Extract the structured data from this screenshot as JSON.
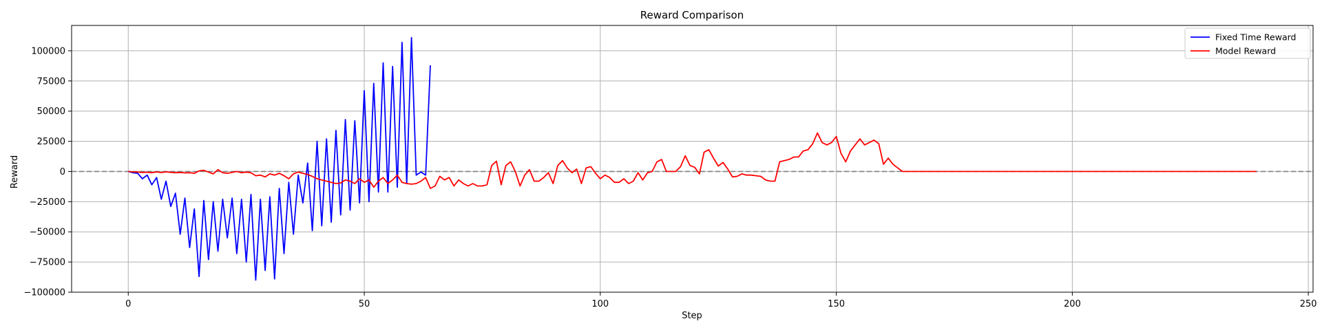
{
  "chart_data": {
    "type": "line",
    "title": "Reward Comparison",
    "xlabel": "Step",
    "ylabel": "Reward",
    "xlim": [
      -12,
      251
    ],
    "ylim": [
      -100000,
      121000
    ],
    "xticks": [
      0,
      50,
      100,
      150,
      200,
      250
    ],
    "yticks": [
      -100000,
      -75000,
      -50000,
      -25000,
      0,
      25000,
      50000,
      75000,
      100000
    ],
    "xtick_labels": [
      "0",
      "50",
      "100",
      "150",
      "200",
      "250"
    ],
    "ytick_labels": [
      "−100000",
      "−75000",
      "−50000",
      "−25000",
      "0",
      "25000",
      "50000",
      "75000",
      "100000"
    ],
    "grid": true,
    "legend_position": "top-right",
    "reference_line": {
      "y": 0,
      "style": "dashed",
      "color": "#808080"
    },
    "series": [
      {
        "name": "Fixed Time Reward",
        "color": "#0000ff",
        "x": [
          0,
          1,
          2,
          3,
          4,
          5,
          6,
          7,
          8,
          9,
          10,
          11,
          12,
          13,
          14,
          15,
          16,
          17,
          18,
          19,
          20,
          21,
          22,
          23,
          24,
          25,
          26,
          27,
          28,
          29,
          30,
          31,
          32,
          33,
          34,
          35,
          36,
          37,
          38,
          39,
          40,
          41,
          42,
          43,
          44,
          45,
          46,
          47,
          48,
          49,
          50,
          51,
          52,
          53,
          54,
          55,
          56,
          57,
          58,
          59,
          60,
          61,
          62,
          63,
          64
        ],
        "y": [
          0,
          -1000,
          -1500,
          -6000,
          -3000,
          -11000,
          -5000,
          -23000,
          -8000,
          -29000,
          -18000,
          -52000,
          -22000,
          -63000,
          -31000,
          -87000,
          -24000,
          -73000,
          -25000,
          -66000,
          -23000,
          -55000,
          -22000,
          -68000,
          -23000,
          -75000,
          -19000,
          -90000,
          -23000,
          -82000,
          -21000,
          -89000,
          -14000,
          -68000,
          -9000,
          -52000,
          -3000,
          -26000,
          7000,
          -49000,
          25000,
          -45000,
          27000,
          -42000,
          34000,
          -36000,
          43000,
          -32000,
          42000,
          -26000,
          67000,
          -25000,
          73000,
          -17000,
          90000,
          -17000,
          87000,
          -13000,
          107000,
          -10000,
          111000,
          -3000,
          -500,
          -3000,
          88000
        ]
      },
      {
        "name": "Model Reward",
        "color": "#ff0000",
        "x": [
          0,
          1,
          2,
          3,
          4,
          5,
          6,
          7,
          8,
          9,
          10,
          11,
          12,
          13,
          14,
          15,
          16,
          17,
          18,
          19,
          20,
          21,
          22,
          23,
          24,
          25,
          26,
          27,
          28,
          29,
          30,
          31,
          32,
          33,
          34,
          35,
          36,
          37,
          38,
          39,
          40,
          41,
          42,
          43,
          44,
          45,
          46,
          47,
          48,
          49,
          50,
          51,
          52,
          53,
          54,
          55,
          56,
          57,
          58,
          59,
          60,
          61,
          62,
          63,
          64,
          65,
          66,
          67,
          68,
          69,
          70,
          71,
          72,
          73,
          74,
          75,
          76,
          77,
          78,
          79,
          80,
          81,
          82,
          83,
          84,
          85,
          86,
          87,
          88,
          89,
          90,
          91,
          92,
          93,
          94,
          95,
          96,
          97,
          98,
          99,
          100,
          101,
          102,
          103,
          104,
          105,
          106,
          107,
          108,
          109,
          110,
          111,
          112,
          113,
          114,
          115,
          116,
          117,
          118,
          119,
          120,
          121,
          122,
          123,
          124,
          125,
          126,
          127,
          128,
          129,
          130,
          131,
          132,
          133,
          134,
          135,
          136,
          137,
          138,
          139,
          140,
          141,
          142,
          143,
          144,
          145,
          146,
          147,
          148,
          149,
          150,
          151,
          152,
          153,
          154,
          155,
          156,
          157,
          158,
          159,
          160,
          161,
          162,
          163,
          164,
          239
        ],
        "y": [
          0,
          -300,
          -500,
          -800,
          -600,
          -1000,
          -400,
          -900,
          -300,
          -700,
          -1000,
          -800,
          -1200,
          -1000,
          -1500,
          500,
          1000,
          -500,
          -2000,
          1500,
          -1000,
          -1500,
          -800,
          0,
          -1000,
          -500,
          -1000,
          -3500,
          -3000,
          -4500,
          -2000,
          -3000,
          -1500,
          -3500,
          -6000,
          -2000,
          -500,
          -1500,
          -2500,
          -4000,
          -6000,
          -7000,
          -8000,
          -9000,
          -10000,
          -9500,
          -7000,
          -8000,
          -10000,
          -6000,
          -9000,
          -7000,
          -13000,
          -8000,
          -5000,
          -10000,
          -7000,
          -3000,
          -9000,
          -10000,
          -10500,
          -10000,
          -8000,
          -5000,
          -14000,
          -12000,
          -4000,
          -7000,
          -5000,
          -12000,
          -7000,
          -10000,
          -12000,
          -10000,
          -12000,
          -12000,
          -11000,
          5000,
          8500,
          -11000,
          5000,
          8000,
          0,
          -12000,
          -3000,
          1500,
          -8000,
          -8000,
          -5000,
          -1000,
          -10000,
          5000,
          9000,
          3000,
          -1000,
          2000,
          -10000,
          3000,
          4000,
          -1500,
          -6000,
          -3000,
          -5000,
          -9000,
          -9000,
          -6000,
          -10000,
          -8000,
          -1000,
          -7000,
          -1000,
          0,
          8000,
          10000,
          0,
          0,
          0,
          4000,
          13000,
          5000,
          3500,
          -2000,
          16000,
          18000,
          11000,
          4500,
          7500,
          2000,
          -4500,
          -4000,
          -2000,
          -3000,
          -3000,
          -3500,
          -4000,
          -7000,
          -8000,
          -8000,
          8000,
          9000,
          10000,
          12000,
          12000,
          17000,
          18000,
          23000,
          32000,
          24000,
          22000,
          24000,
          29000,
          15000,
          8000,
          17000,
          22000,
          27000,
          22000,
          24000,
          26000,
          23000,
          6000,
          11000,
          6000,
          3000,
          0,
          0
        ]
      }
    ]
  }
}
